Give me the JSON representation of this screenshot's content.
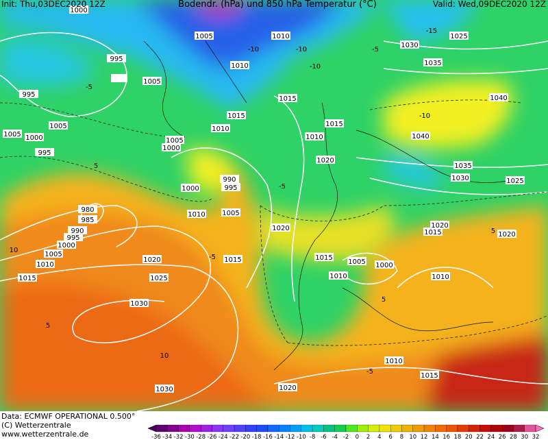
{
  "header": {
    "init": "Init: Thu,03DEC2020 12Z",
    "title": "Bodendr. (hPa) und 850 hPa Temperatur (°C)",
    "valid": "Valid: Wed,09DEC2020 12Z"
  },
  "footer": {
    "source": "Data: ECMWF OPERATIONAL 0.500°",
    "copyright": "(C) Wetterzentrale",
    "url": "www.wetterzentrale.de"
  },
  "colorbar": {
    "ticks": [
      -36,
      -34,
      -32,
      -30,
      -28,
      -26,
      -24,
      -22,
      -20,
      -18,
      -16,
      -14,
      -12,
      -10,
      -8,
      -6,
      -4,
      -2,
      0,
      2,
      4,
      6,
      8,
      10,
      12,
      14,
      16,
      18,
      20,
      22,
      24,
      26,
      28,
      30,
      32
    ]
  },
  "isobar_labels": [
    "1000",
    "995",
    "995",
    "1005",
    "1005",
    "1010",
    "1010",
    "1005",
    "1005",
    "1000",
    "995",
    "1015",
    "1015",
    "1010",
    "1005",
    "1000",
    "1015",
    "1010",
    "1030",
    "1035",
    "1025",
    "1040",
    "1040",
    "1035",
    "1030",
    "1025",
    "1020",
    "990",
    "995",
    "1000",
    "980",
    "985",
    "990",
    "995",
    "1000",
    "1005",
    "1010",
    "1015",
    "1010",
    "1005",
    "1020",
    "1020",
    "1015",
    "1020",
    "1015",
    "1015",
    "1005",
    "1000",
    "1010",
    "1010",
    "1020",
    "1025",
    "1030",
    "1010",
    "1015",
    "1020",
    "1030"
  ],
  "temperature_labels": [
    "-5",
    "-10",
    "-15",
    "-5",
    "-10",
    "-5",
    "5",
    "-5",
    "10",
    "5",
    "-10",
    "5",
    "10",
    "-10",
    "5",
    "-5"
  ]
}
